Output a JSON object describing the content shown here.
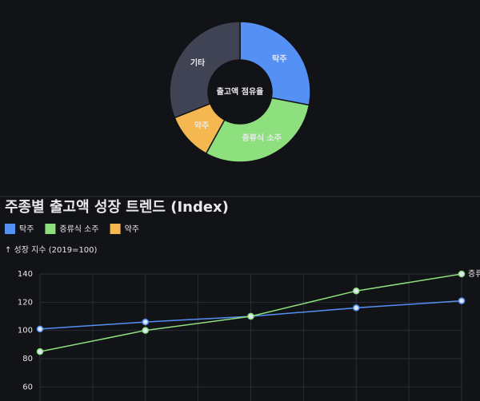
{
  "chart_data": [
    {
      "type": "pie",
      "center_label": "출고액 점유율",
      "categories": [
        "탁주",
        "증류식 소주",
        "약주",
        "기타"
      ],
      "values": [
        28,
        30,
        11,
        31
      ],
      "colors": [
        "#5590f5",
        "#8ee07e",
        "#f5b74f",
        "#3f4354"
      ]
    },
    {
      "type": "line",
      "title": "주종별 출고액 성장 트렌드 (Index)",
      "y_label": "↑ 성장 지수 (2019=100)",
      "categories": [
        null,
        null,
        null,
        null,
        null
      ],
      "series": [
        {
          "name": "탁주",
          "color": "#5590f5",
          "values": [
            101,
            106,
            110,
            116,
            121
          ]
        },
        {
          "name": "증류식 소주",
          "color": "#8ee07e",
          "values": [
            85,
            100,
            110,
            128,
            140
          ]
        },
        {
          "name": "약주",
          "color": "#f5b74f",
          "values": [
            null,
            null,
            null,
            null,
            null
          ]
        }
      ],
      "ylim": [
        50,
        140
      ],
      "yticks": [
        60,
        80,
        100,
        120,
        140
      ],
      "grid": true
    }
  ]
}
